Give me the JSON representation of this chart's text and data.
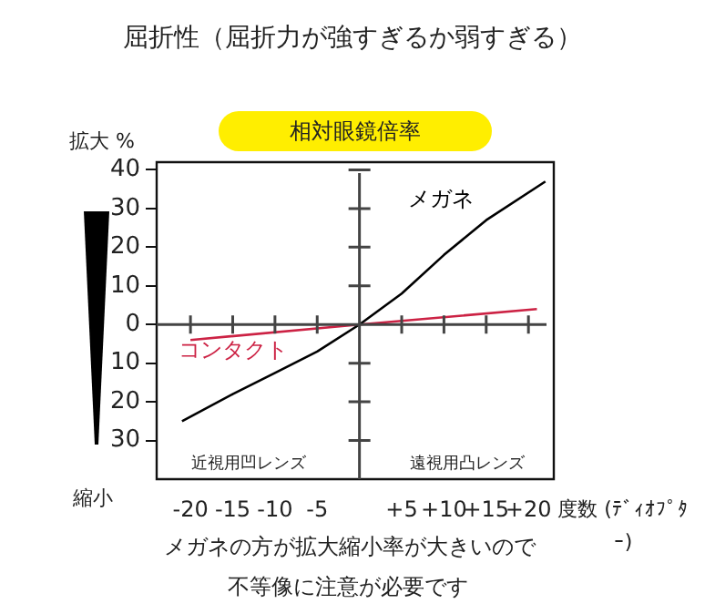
{
  "chart_data": {
    "type": "line",
    "title": "屈折性（屈折力が強すぎるか弱すぎる）",
    "subtitle": "相対眼鏡倍率",
    "ylabel": "拡大 %",
    "xlabel": "度数 (ﾃﾞｨｵﾌﾟﾀｰ)",
    "annotations": [
      "縮小",
      "近視用凹レンズ",
      "遠視用凸レンズ",
      "メガネの方が拡大縮小率が大きいので",
      "不等像に注意が必要です"
    ],
    "series": [
      {
        "name": "メガネ",
        "color": "#000000",
        "x": [
          -21,
          -15,
          -10,
          -5,
          0,
          5,
          10,
          15,
          22
        ],
        "values": [
          -25,
          -18,
          -12.5,
          -7,
          0,
          8,
          18,
          27,
          37
        ]
      },
      {
        "name": "コンタクト",
        "color": "#cc2244",
        "x": [
          -20,
          0,
          21
        ],
        "values": [
          -4,
          0,
          4
        ]
      }
    ],
    "xlim": [
      -24,
      23
    ],
    "ylim": [
      -40,
      42
    ],
    "xticks": [
      -20,
      -15,
      -10,
      -5,
      {
        "value": 5,
        "label": "+5"
      },
      {
        "value": 10,
        "label": "+10"
      },
      {
        "value": 15,
        "label": "+15"
      },
      {
        "value": 20,
        "label": "+20"
      }
    ],
    "yticks": [
      40,
      30,
      20,
      10,
      0,
      {
        "value": -10,
        "label": "10"
      },
      {
        "value": -20,
        "label": "20"
      },
      {
        "value": -30,
        "label": "30"
      }
    ],
    "legend": false,
    "marker": "none",
    "line_style": "solid"
  }
}
